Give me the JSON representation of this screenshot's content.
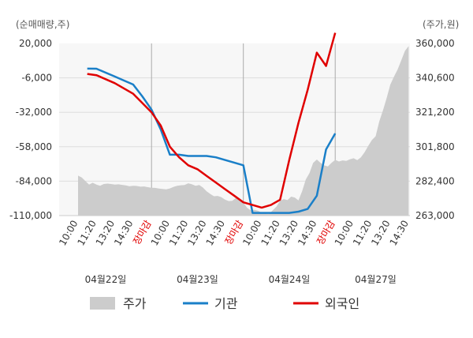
{
  "chart_data": {
    "type": "line",
    "y_left_unit": "(순매매량,주)",
    "y_right_unit": "(주가,원)",
    "y_left_ticks": [
      "20,000",
      "-6,000",
      "-32,000",
      "-58,000",
      "-84,000",
      "-110,000"
    ],
    "y_right_ticks": [
      "360,000",
      "340,600",
      "321,200",
      "301,800",
      "282,400",
      "263,000"
    ],
    "y_left_range": [
      -110000,
      20000
    ],
    "y_right_range": [
      263000,
      360000
    ],
    "x_ticks": [
      "10:00",
      "11:20",
      "13:20",
      "14:30",
      "장마감",
      "10:00",
      "11:20",
      "13:20",
      "14:30",
      "장마감",
      "10:00",
      "11:20",
      "13:20",
      "14:30",
      "장마감",
      "10:00",
      "11:20",
      "13:20",
      "14:30"
    ],
    "dates": [
      "04월22일",
      "04월23일",
      "04월24일",
      "04월27일"
    ],
    "grid_color": "#dddddd",
    "series": [
      {
        "name": "주가",
        "axis": "right",
        "style": "area",
        "color": "#cccccc",
        "x": [
          0,
          0.2,
          0.4,
          0.6,
          0.8,
          1.0,
          1.2,
          1.4,
          1.6,
          1.8,
          2.0,
          2.2,
          2.4,
          2.6,
          2.8,
          3.0,
          3.2,
          3.4,
          3.6,
          3.8,
          4.0,
          4.2,
          4.4,
          4.6,
          4.8,
          5.0,
          5.2,
          5.4,
          5.6,
          5.8,
          6.0,
          6.2,
          6.4,
          6.6,
          6.8,
          7.0,
          7.2,
          7.4,
          7.6,
          7.8,
          8.0,
          8.2,
          8.4,
          8.6,
          8.8,
          9.0,
          9.2,
          9.4,
          9.6,
          9.8,
          10.0,
          10.2,
          10.4,
          10.6,
          10.8,
          11.0,
          11.2,
          11.4,
          11.6,
          11.8,
          12.0,
          12.2,
          12.4,
          12.6,
          12.8,
          13.0,
          13.2,
          13.4,
          13.6,
          13.8,
          14.0,
          14.2,
          14.4,
          14.6,
          14.8,
          15.0,
          15.2,
          15.4,
          15.6,
          15.8,
          16.0,
          16.2,
          16.4,
          16.6,
          16.8,
          17.0,
          17.2,
          17.4,
          17.6,
          17.8,
          18.0
        ],
        "values": [
          285500,
          284500,
          282500,
          280500,
          281500,
          280500,
          279800,
          280800,
          281000,
          280800,
          280500,
          280600,
          280300,
          280000,
          279500,
          279800,
          279700,
          279300,
          279400,
          279000,
          278700,
          278600,
          278200,
          278000,
          277800,
          278300,
          279200,
          279800,
          280100,
          280200,
          281200,
          280600,
          279800,
          280200,
          278800,
          276700,
          275200,
          273900,
          274100,
          273400,
          272000,
          271200,
          271300,
          273000,
          271600,
          270400,
          267400,
          266000,
          266300,
          265700,
          264700,
          264100,
          263900,
          266000,
          268000,
          271300,
          272300,
          271700,
          273700,
          273200,
          271600,
          276800,
          283400,
          287000,
          292700,
          294600,
          292700,
          291300,
          290700,
          292700,
          294400,
          293500,
          294100,
          293800,
          294700,
          295300,
          294300,
          295800,
          298700,
          302300,
          305600,
          307700,
          316100,
          322300,
          329100,
          336800,
          341300,
          345300,
          350600,
          355800,
          358500
        ]
      },
      {
        "name": "기관",
        "axis": "left",
        "style": "line",
        "color": "#1a7fc8",
        "x": [
          0.5,
          1.0,
          2.0,
          2.5,
          3.0,
          3.5,
          4.0,
          4.5,
          5.0,
          5.5,
          6.0,
          6.5,
          7.0,
          7.5,
          8.0,
          8.5,
          9.0,
          9.5,
          10.0,
          10.5,
          11.0,
          11.5,
          12.0,
          12.5,
          13.0,
          13.5,
          14.0
        ],
        "values": [
          1000,
          900,
          -5000,
          -8000,
          -11000,
          -20000,
          -30000,
          -45000,
          -64000,
          -64000,
          -65000,
          -65000,
          -65000,
          -66000,
          -68000,
          -70000,
          -72000,
          -108000,
          -108000,
          -108000,
          -108000,
          -108000,
          -107000,
          -105000,
          -95000,
          -60000,
          -48000
        ]
      },
      {
        "name": "외국인",
        "axis": "left",
        "style": "line",
        "color": "#e00000",
        "x": [
          0.5,
          1.0,
          2.0,
          3.0,
          4.0,
          4.5,
          5.0,
          5.5,
          6.0,
          6.5,
          7.0,
          7.5,
          8.0,
          8.5,
          9.0,
          9.5,
          10.0,
          10.5,
          11.0,
          11.5,
          12.0,
          12.5,
          13.0,
          13.5,
          14.0
        ],
        "values": [
          -3000,
          -4000,
          -10000,
          -18000,
          -32000,
          -42000,
          -58000,
          -66000,
          -72000,
          -75000,
          -80000,
          -85000,
          -90000,
          -95000,
          -100000,
          -102000,
          -104000,
          -102000,
          -98000,
          -68000,
          -40000,
          -15000,
          13000,
          3000,
          28000
        ]
      }
    ],
    "legend": [
      "주가",
      "기관",
      "외국인"
    ],
    "legend_placement": "bottom"
  }
}
